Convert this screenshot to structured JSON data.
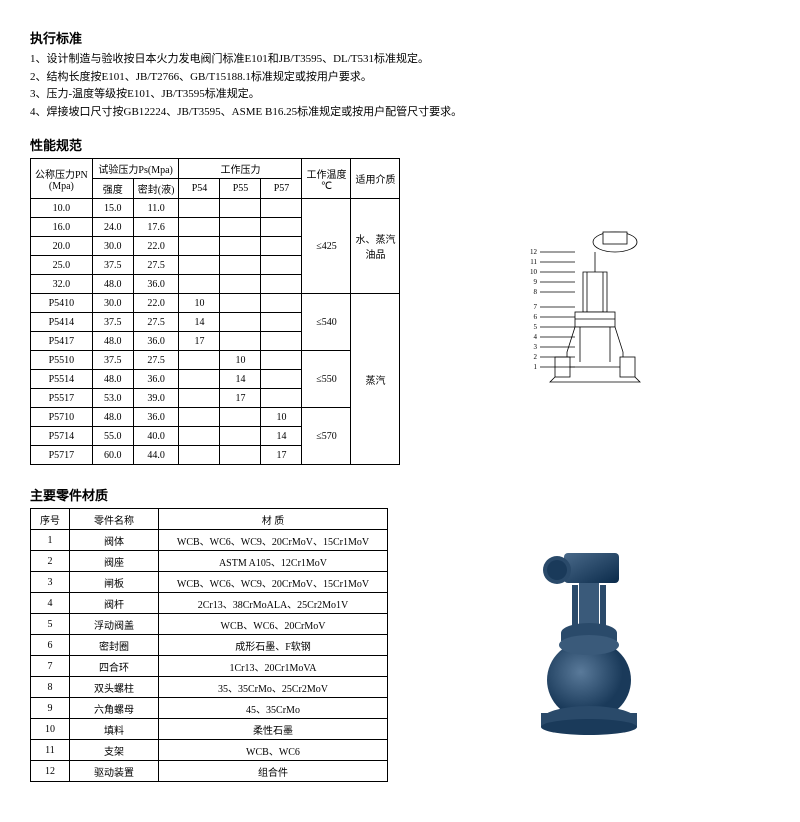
{
  "standards": {
    "title": "执行标准",
    "items": [
      "1、设计制造与验收按日本火力发电阀门标准E101和JB/T3595、DL/T531标准规定。",
      "2、结构长度按E101、JB/T2766、GB/T15188.1标准规定或按用户要求。",
      "3、压力-温度等级按E101、JB/T3595标准规定。",
      "4、焊接坡口尺寸按GB12224、JB/T3595、ASME B16.25标准规定或按用户配管尺寸要求。"
    ]
  },
  "perf": {
    "title": "性能规范",
    "headers": {
      "pn": "公称压力PN\n(Mpa)",
      "test": "试验压力Ps(Mpa)",
      "strength": "强度",
      "seal": "密封(液)",
      "work": "工作压力",
      "p54": "P54",
      "p55": "P55",
      "p57": "P57",
      "temp": "工作温度\n℃",
      "medium": "适用介质"
    },
    "rows": [
      {
        "pn": "10.0",
        "s": "15.0",
        "seal": "11.0",
        "p54": "",
        "p55": "",
        "p57": "",
        "t": "≤425",
        "m": "水、蒸汽\n油品",
        "tspan": 5,
        "mspan": 5
      },
      {
        "pn": "16.0",
        "s": "24.0",
        "seal": "17.6",
        "p54": "",
        "p55": "",
        "p57": ""
      },
      {
        "pn": "20.0",
        "s": "30.0",
        "seal": "22.0",
        "p54": "",
        "p55": "",
        "p57": ""
      },
      {
        "pn": "25.0",
        "s": "37.5",
        "seal": "27.5",
        "p54": "",
        "p55": "",
        "p57": ""
      },
      {
        "pn": "32.0",
        "s": "48.0",
        "seal": "36.0",
        "p54": "",
        "p55": "",
        "p57": ""
      },
      {
        "pn": "P5410",
        "s": "30.0",
        "seal": "22.0",
        "p54": "10",
        "p55": "",
        "p57": "",
        "t": "≤540",
        "m": "蒸汽",
        "tspan": 3,
        "mspan": 9
      },
      {
        "pn": "P5414",
        "s": "37.5",
        "seal": "27.5",
        "p54": "14",
        "p55": "",
        "p57": ""
      },
      {
        "pn": "P5417",
        "s": "48.0",
        "seal": "36.0",
        "p54": "17",
        "p55": "",
        "p57": ""
      },
      {
        "pn": "P5510",
        "s": "37.5",
        "seal": "27.5",
        "p54": "",
        "p55": "10",
        "p57": "",
        "t": "≤550",
        "tspan": 3
      },
      {
        "pn": "P5514",
        "s": "48.0",
        "seal": "36.0",
        "p54": "",
        "p55": "14",
        "p57": ""
      },
      {
        "pn": "P5517",
        "s": "53.0",
        "seal": "39.0",
        "p54": "",
        "p55": "17",
        "p57": ""
      },
      {
        "pn": "P5710",
        "s": "48.0",
        "seal": "36.0",
        "p54": "",
        "p55": "",
        "p57": "10",
        "t": "≤570",
        "tspan": 3
      },
      {
        "pn": "P5714",
        "s": "55.0",
        "seal": "40.0",
        "p54": "",
        "p55": "",
        "p57": "14"
      },
      {
        "pn": "P5717",
        "s": "60.0",
        "seal": "44.0",
        "p54": "",
        "p55": "",
        "p57": "17"
      }
    ]
  },
  "materials": {
    "title": "主要零件材质",
    "headers": {
      "idx": "序号",
      "name": "零件名称",
      "mat": "材    质"
    },
    "rows": [
      {
        "idx": "1",
        "name": "阀体",
        "mat": "WCB、WC6、WC9、20CrMoV、15Cr1MoV"
      },
      {
        "idx": "2",
        "name": "阀座",
        "mat": "ASTM A105、12Cr1MoV"
      },
      {
        "idx": "3",
        "name": "闸板",
        "mat": "WCB、WC6、WC9、20CrMoV、15Cr1MoV"
      },
      {
        "idx": "4",
        "name": "阀杆",
        "mat": "2Cr13、38CrMoALA、25Cr2Mo1V"
      },
      {
        "idx": "5",
        "name": "浮动阀盖",
        "mat": "WCB、WC6、20CrMoV"
      },
      {
        "idx": "6",
        "name": "密封圈",
        "mat": "成形石墨、F软钢"
      },
      {
        "idx": "7",
        "name": "四合环",
        "mat": "1Cr13、20Cr1MoVA"
      },
      {
        "idx": "8",
        "name": "双头螺柱",
        "mat": "35、35CrMo、25Cr2MoV"
      },
      {
        "idx": "9",
        "name": "六角螺母",
        "mat": "45、35CrMo"
      },
      {
        "idx": "10",
        "name": "填料",
        "mat": "柔性石墨"
      },
      {
        "idx": "11",
        "name": "支架",
        "mat": "WCB、WC6"
      },
      {
        "idx": "12",
        "name": "驱动装置",
        "mat": "组合件"
      }
    ]
  },
  "callouts": [
    "12",
    "11",
    "10",
    "9",
    "8",
    "7",
    "6",
    "5",
    "4",
    "3",
    "2",
    "1"
  ]
}
